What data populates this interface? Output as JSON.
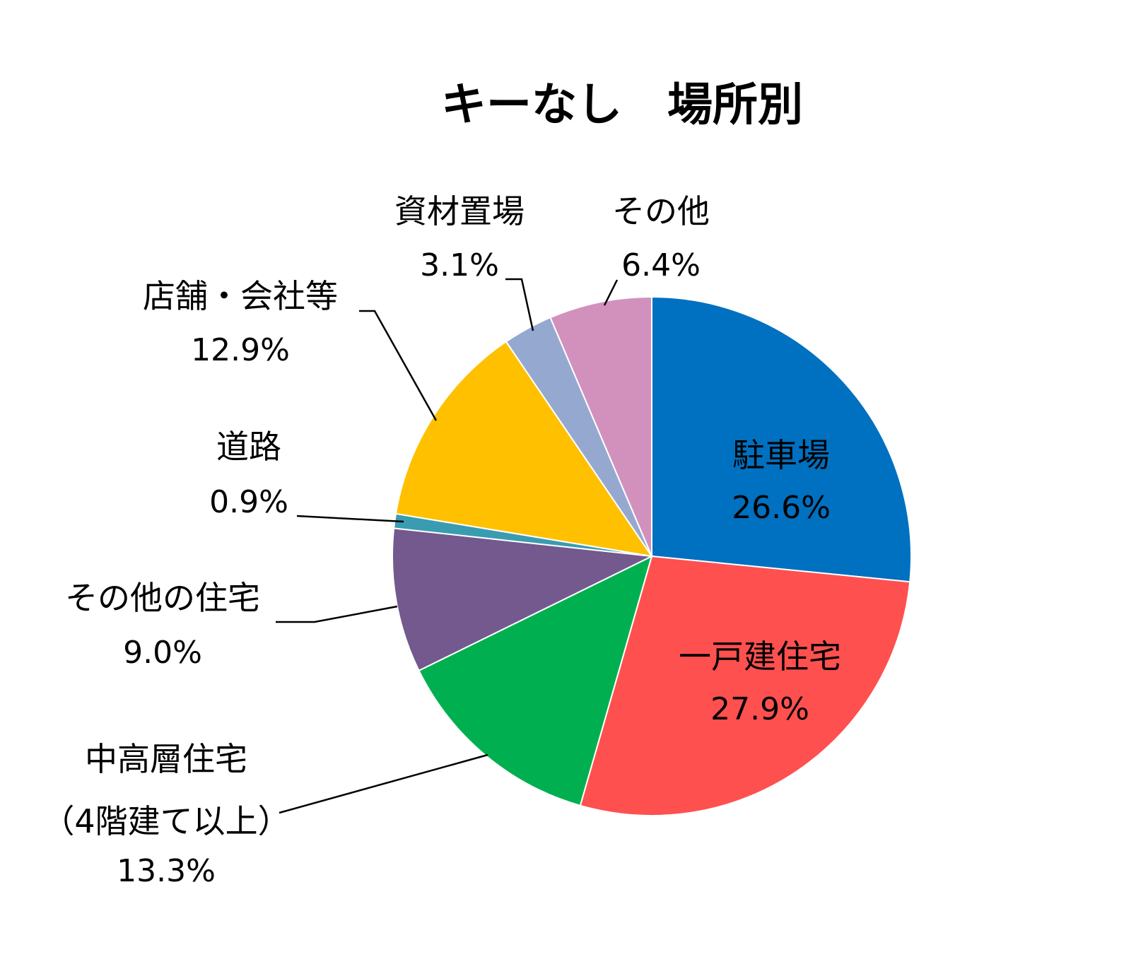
{
  "chart_data": {
    "type": "pie",
    "title": "キーなし　場所別",
    "start_angle_deg": 0,
    "direction": "clockwise",
    "slices": [
      {
        "name": "駐車場",
        "label_lines": [
          "駐車場"
        ],
        "value": 26.6,
        "pct_text": "26.6%",
        "color": "#0070C0"
      },
      {
        "name": "一戸建住宅",
        "label_lines": [
          "一戸建住宅"
        ],
        "value": 27.9,
        "pct_text": "27.9%",
        "color": "#FF5050"
      },
      {
        "name": "中高層住宅（4階建て以上）",
        "label_lines": [
          "中高層住宅",
          "（4階建て以上）"
        ],
        "value": 13.3,
        "pct_text": "13.3%",
        "color": "#00B050"
      },
      {
        "name": "その他の住宅",
        "label_lines": [
          "その他の住宅"
        ],
        "value": 9.0,
        "pct_text": "9.0%",
        "color": "#73598E"
      },
      {
        "name": "道路",
        "label_lines": [
          "道路"
        ],
        "value": 0.9,
        "pct_text": "0.9%",
        "color": "#3A9CB0"
      },
      {
        "name": "店舗・会社等",
        "label_lines": [
          "店舗・会社等"
        ],
        "value": 12.9,
        "pct_text": "12.9%",
        "color": "#FFC000"
      },
      {
        "name": "資材置場",
        "label_lines": [
          "資材置場"
        ],
        "value": 3.1,
        "pct_text": "3.1%",
        "color": "#95A9D0"
      },
      {
        "name": "その他",
        "label_lines": [
          "その他"
        ],
        "value": 6.4,
        "pct_text": "6.4%",
        "color": "#D291BC"
      }
    ]
  }
}
